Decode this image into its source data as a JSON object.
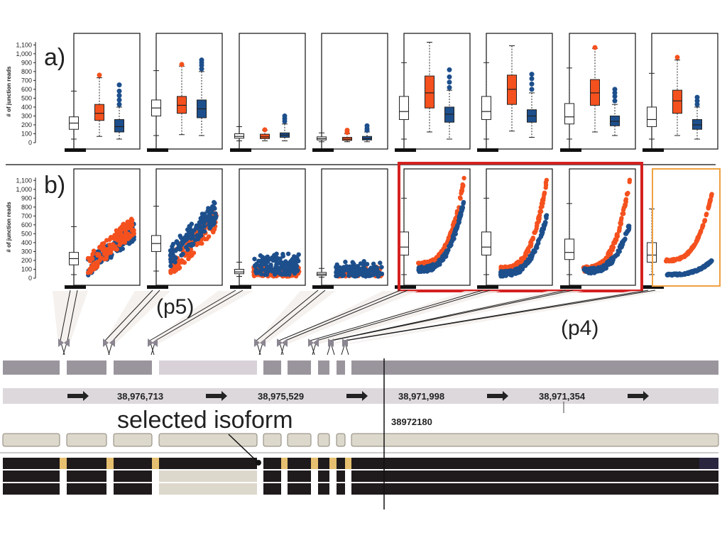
{
  "panel_labels": {
    "a": "a)",
    "b": "b)"
  },
  "annotations": {
    "p5": "(p5)",
    "p4": "(p4)",
    "selected_isoform": "selected isoform"
  },
  "colors": {
    "orange": "#f4511e",
    "blue": "#1d4f8c",
    "highlight_red": "#d42020",
    "highlight_orange": "#f0a040",
    "exon_gray": "#9a959d",
    "exon_light": "#d8d2d8",
    "isoform_fill": "#ddd8cc",
    "track_dark": "#1f1a1c",
    "junction_gold": "#e6c070"
  },
  "genome": {
    "coords": [
      "38,976,713",
      "38,975,529",
      "38,971,998",
      "38,971,354"
    ],
    "cursor_label": "38972180"
  },
  "chart_data": {
    "type": "box",
    "ylabel": "# of junction reads",
    "yticks": [
      "1,100",
      "1,000",
      "900",
      "800",
      "700",
      "600",
      "500",
      "400",
      "300",
      "200",
      "100",
      "0"
    ],
    "ylim": [
      0,
      1150
    ],
    "box_panels": [
      {
        "boxes": [
          {
            "min": 40,
            "q1": 150,
            "med": 220,
            "q3": 290,
            "max": 580,
            "color": "white"
          },
          {
            "min": 70,
            "q1": 250,
            "med": 330,
            "q3": 430,
            "max": 730,
            "color": "orange",
            "outliers": [
              760
            ]
          },
          {
            "min": 40,
            "q1": 120,
            "med": 180,
            "q3": 260,
            "max": 400,
            "color": "blue",
            "outliers": [
              430,
              480,
              530,
              580,
              650
            ]
          }
        ]
      },
      {
        "boxes": [
          {
            "min": 80,
            "q1": 300,
            "med": 390,
            "q3": 480,
            "max": 810,
            "color": "white"
          },
          {
            "min": 90,
            "q1": 330,
            "med": 420,
            "q3": 520,
            "max": 860,
            "color": "orange",
            "outliers": [
              880
            ]
          },
          {
            "min": 80,
            "q1": 280,
            "med": 380,
            "q3": 480,
            "max": 800,
            "color": "blue",
            "outliers": [
              830,
              870,
              900,
              930
            ]
          }
        ]
      },
      {
        "boxes": [
          {
            "min": 20,
            "q1": 50,
            "med": 70,
            "q3": 100,
            "max": 180,
            "color": "white"
          },
          {
            "min": 20,
            "q1": 45,
            "med": 65,
            "q3": 95,
            "max": 140,
            "color": "orange",
            "outliers": [
              145
            ]
          },
          {
            "min": 20,
            "q1": 60,
            "med": 85,
            "q3": 110,
            "max": 210,
            "color": "blue",
            "outliers": [
              240,
              270,
              300
            ]
          }
        ]
      },
      {
        "boxes": [
          {
            "min": 10,
            "q1": 30,
            "med": 45,
            "q3": 65,
            "max": 110,
            "color": "white"
          },
          {
            "min": 10,
            "q1": 25,
            "med": 40,
            "q3": 60,
            "max": 100,
            "color": "orange",
            "outliers": [
              115,
              140
            ]
          },
          {
            "min": 10,
            "q1": 30,
            "med": 45,
            "q3": 70,
            "max": 120,
            "color": "blue",
            "outliers": [
              140,
              160,
              190
            ]
          }
        ]
      },
      {
        "boxes": [
          {
            "min": 40,
            "q1": 260,
            "med": 350,
            "q3": 520,
            "max": 900,
            "color": "white"
          },
          {
            "min": 120,
            "q1": 390,
            "med": 560,
            "q3": 750,
            "max": 1130,
            "color": "orange"
          },
          {
            "min": 40,
            "q1": 230,
            "med": 320,
            "q3": 400,
            "max": 590,
            "color": "blue",
            "outliers": [
              620,
              680,
              740,
              820
            ]
          }
        ]
      },
      {
        "boxes": [
          {
            "min": 40,
            "q1": 260,
            "med": 350,
            "q3": 520,
            "max": 900,
            "color": "white"
          },
          {
            "min": 130,
            "q1": 430,
            "med": 600,
            "q3": 760,
            "max": 1090,
            "color": "orange"
          },
          {
            "min": 60,
            "q1": 230,
            "med": 300,
            "q3": 370,
            "max": 560,
            "color": "blue",
            "outliers": [
              600,
              660,
              720,
              770
            ]
          }
        ]
      },
      {
        "boxes": [
          {
            "min": 40,
            "q1": 210,
            "med": 290,
            "q3": 440,
            "max": 840,
            "color": "white"
          },
          {
            "min": 120,
            "q1": 420,
            "med": 560,
            "q3": 710,
            "max": 1060,
            "color": "orange",
            "outliers": [
              1070
            ]
          },
          {
            "min": 80,
            "q1": 190,
            "med": 240,
            "q3": 300,
            "max": 430,
            "color": "blue",
            "outliers": [
              470,
              520,
              560,
              600
            ]
          }
        ]
      },
      {
        "boxes": [
          {
            "min": 40,
            "q1": 180,
            "med": 260,
            "q3": 400,
            "max": 780,
            "color": "white"
          },
          {
            "min": 80,
            "q1": 330,
            "med": 470,
            "q3": 590,
            "max": 930,
            "color": "orange",
            "outliers": [
              960
            ]
          },
          {
            "min": 40,
            "q1": 150,
            "med": 200,
            "q3": 260,
            "max": 400,
            "color": "blue",
            "outliers": [
              430,
              470,
              510
            ]
          }
        ]
      }
    ],
    "scatter_panels": [
      {
        "white_box": {
          "min": 40,
          "q1": 150,
          "med": 220,
          "q3": 290,
          "max": 580
        },
        "blue_range": [
          [
            40,
            80
          ],
          [
            90,
            650
          ]
        ],
        "orange_range": [
          [
            30,
            80
          ],
          [
            100,
            760
          ]
        ],
        "shape": "linear"
      },
      {
        "white_box": {
          "min": 80,
          "q1": 300,
          "med": 390,
          "q3": 480,
          "max": 810
        },
        "blue_range": [
          [
            20,
            80
          ],
          [
            200,
            930
          ]
        ],
        "orange_range": [
          [
            30,
            90
          ],
          [
            80,
            880
          ]
        ],
        "shape": "linear"
      },
      {
        "white_box": {
          "min": 20,
          "q1": 50,
          "med": 70,
          "q3": 100,
          "max": 180
        },
        "blue_range": [
          [
            0,
            100
          ],
          [
            40,
            300
          ]
        ],
        "orange_range": [
          [
            0,
            100
          ],
          [
            20,
            140
          ]
        ],
        "shape": "flat"
      },
      {
        "white_box": {
          "min": 10,
          "q1": 30,
          "med": 45,
          "q3": 65,
          "max": 110
        },
        "blue_range": [
          [
            0,
            100
          ],
          [
            20,
            200
          ]
        ],
        "orange_range": [
          [
            0,
            100
          ],
          [
            20,
            140
          ]
        ],
        "shape": "flat"
      },
      {
        "white_box": {
          "min": 40,
          "q1": 260,
          "med": 350,
          "q3": 520,
          "max": 900
        },
        "blue_range": [
          [
            0,
            100
          ],
          [
            100,
            900
          ]
        ],
        "orange_range": [
          [
            0,
            100
          ],
          [
            150,
            1130
          ]
        ],
        "shape": "curve"
      },
      {
        "white_box": {
          "min": 40,
          "q1": 260,
          "med": 350,
          "q3": 520,
          "max": 900
        },
        "blue_range": [
          [
            0,
            100
          ],
          [
            50,
            700
          ]
        ],
        "orange_range": [
          [
            0,
            100
          ],
          [
            100,
            1100
          ]
        ],
        "shape": "curve"
      },
      {
        "white_box": {
          "min": 40,
          "q1": 210,
          "med": 290,
          "q3": 440,
          "max": 840
        },
        "blue_range": [
          [
            0,
            100
          ],
          [
            80,
            600
          ]
        ],
        "orange_range": [
          [
            0,
            100
          ],
          [
            100,
            1100
          ]
        ],
        "shape": "curve"
      },
      {
        "white_box": {
          "min": 40,
          "q1": 180,
          "med": 260,
          "q3": 400,
          "max": 780
        },
        "blue_range": [
          [
            0,
            100
          ],
          [
            40,
            200
          ]
        ],
        "orange_range": [
          [
            0,
            100
          ],
          [
            200,
            960
          ]
        ],
        "shape": "curve_thin"
      }
    ]
  }
}
